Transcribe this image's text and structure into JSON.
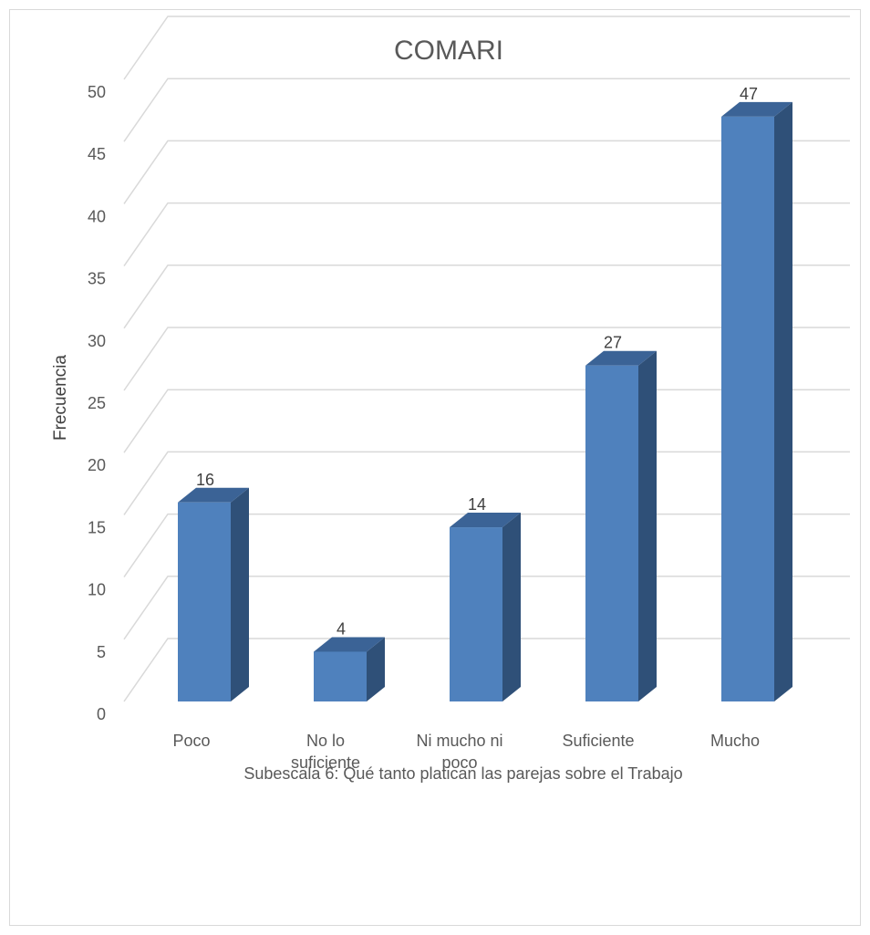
{
  "chart_data": {
    "type": "bar",
    "title": "COMARI",
    "xlabel": "Subescala 6: Qué tanto platican las parejas sobre el Trabajo",
    "ylabel": "Frecuencia",
    "categories": [
      [
        "Poco"
      ],
      [
        "No lo",
        "suficiente"
      ],
      [
        "Ni mucho ni",
        "poco"
      ],
      [
        "Suficiente"
      ],
      [
        "Mucho"
      ]
    ],
    "values": [
      16,
      4,
      14,
      27,
      47
    ],
    "ylim": [
      0,
      50
    ],
    "yticks": [
      0,
      5,
      10,
      15,
      20,
      25,
      30,
      35,
      40,
      45,
      50
    ],
    "grid": true,
    "bar_style": "3d-column",
    "colors": {
      "front": "#4f81bd",
      "side": "#2f5078",
      "top": "#3b6396",
      "grid": "#d9d9d9"
    }
  }
}
